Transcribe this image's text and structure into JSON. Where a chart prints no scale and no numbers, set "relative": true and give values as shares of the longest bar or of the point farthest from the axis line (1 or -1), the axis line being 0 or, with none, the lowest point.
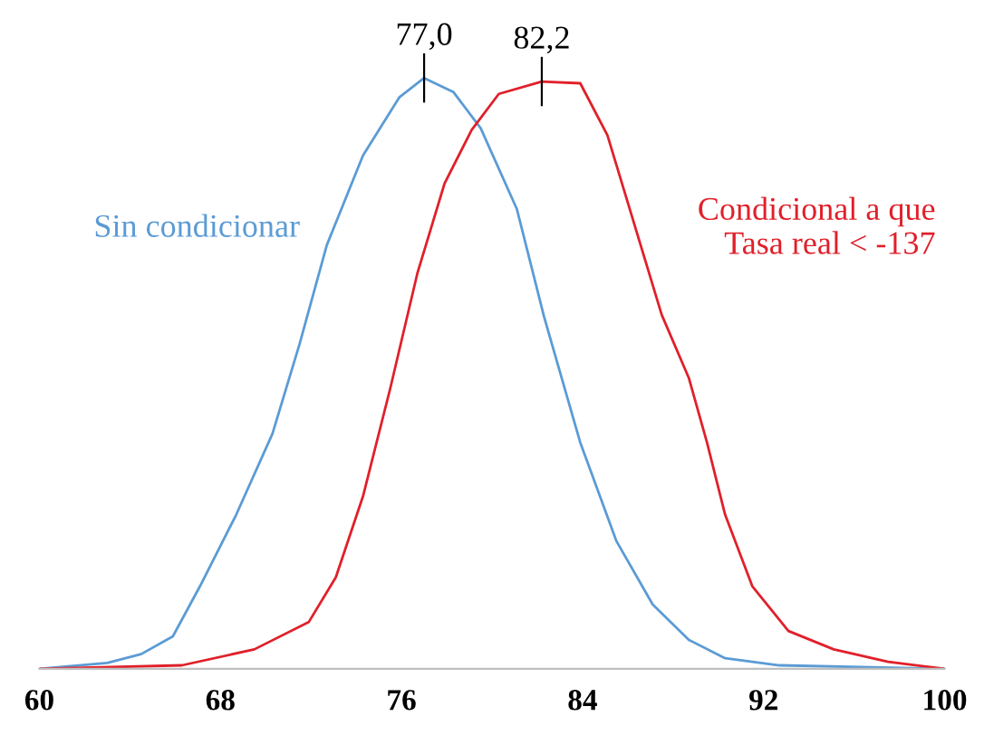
{
  "chart_data": {
    "type": "line",
    "relative": true,
    "xlim": [
      60,
      100
    ],
    "xticks": [
      60,
      68,
      76,
      84,
      92,
      100
    ],
    "series": [
      {
        "name": "Sin condicionar",
        "color": "#5b9bd5",
        "x": [
          60,
          63,
          64.5,
          65.9,
          67.1,
          68.7,
          70.3,
          71.5,
          72.7,
          74.3,
          75.9,
          77.0,
          78.3,
          79.5,
          81.1,
          82.3,
          83.9,
          85.5,
          87.1,
          88.7,
          90.3,
          92.7,
          100
        ],
        "values": [
          0,
          0.01,
          0.025,
          0.055,
          0.14,
          0.261,
          0.398,
          0.55,
          0.717,
          0.869,
          0.967,
          1,
          0.976,
          0.915,
          0.778,
          0.596,
          0.383,
          0.216,
          0.109,
          0.049,
          0.018,
          0.006,
          0
        ]
      },
      {
        "name": "Condicional a que\nTasa real < -137",
        "color": "#e0202a",
        "x": [
          60,
          66.3,
          69.5,
          71.9,
          73.1,
          74.3,
          75.5,
          76.7,
          77.9,
          79.1,
          80.3,
          82.2,
          83.9,
          85.1,
          86.3,
          87.5,
          88.7,
          89.5,
          90.3,
          91.5,
          93.1,
          95.1,
          97.5,
          100
        ],
        "values": [
          0,
          0.006,
          0.033,
          0.079,
          0.155,
          0.292,
          0.474,
          0.669,
          0.821,
          0.912,
          0.973,
          0.994,
          0.991,
          0.903,
          0.751,
          0.599,
          0.492,
          0.383,
          0.261,
          0.14,
          0.064,
          0.033,
          0.012,
          0
        ]
      }
    ],
    "annotations": [
      {
        "text": "77,0",
        "x": 77,
        "y": 1
      },
      {
        "text": "82,2",
        "x": 82.2,
        "y": 0.994
      }
    ],
    "grid": false,
    "legend": false
  }
}
